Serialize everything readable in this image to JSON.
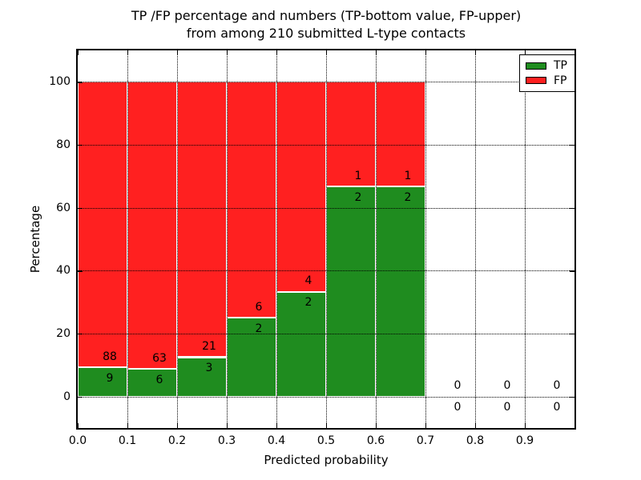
{
  "figure": {
    "title_line1": "TP /FP percentage and numbers (TP-bottom value, FP-upper)",
    "title_line2": "from among 210 submitted L-type contacts",
    "background": "#ffffff"
  },
  "chart_data": {
    "type": "bar",
    "stacked": true,
    "normalized_to_percent": true,
    "title": "TP /FP percentage and numbers (TP-bottom value, FP-upper) from among 210 submitted L-type contacts",
    "xlabel": "Predicted probability",
    "ylabel": "Percentage",
    "xlim": [
      0.0,
      1.0
    ],
    "ylim": [
      -10,
      110
    ],
    "xticks": [
      "0.0",
      "0.1",
      "0.2",
      "0.3",
      "0.4",
      "0.5",
      "0.6",
      "0.7",
      "0.8",
      "0.9"
    ],
    "yticks": [
      "0",
      "20",
      "40",
      "60",
      "80",
      "100"
    ],
    "grid": "dotted-black",
    "bin_width": 0.1,
    "categories": [
      "0.0-0.1",
      "0.1-0.2",
      "0.2-0.3",
      "0.3-0.4",
      "0.4-0.5",
      "0.5-0.6",
      "0.6-0.7",
      "0.7-0.8",
      "0.8-0.9",
      "0.9-1.0"
    ],
    "series": [
      {
        "name": "TP",
        "color": "#1f8c1f",
        "counts": [
          9,
          6,
          3,
          2,
          2,
          2,
          2,
          0,
          0,
          0
        ]
      },
      {
        "name": "FP",
        "color": "#ff2020",
        "counts": [
          88,
          63,
          21,
          6,
          4,
          1,
          1,
          0,
          0,
          0
        ]
      }
    ],
    "tp_percent_of_bin": [
      9.28,
      8.7,
      12.5,
      25.0,
      33.33,
      66.67,
      66.67,
      0,
      0,
      0
    ],
    "total_contacts": 210,
    "bar_edge_color": "#ffffff",
    "legend": {
      "position": "upper-right",
      "entries": [
        "TP",
        "FP"
      ]
    }
  }
}
